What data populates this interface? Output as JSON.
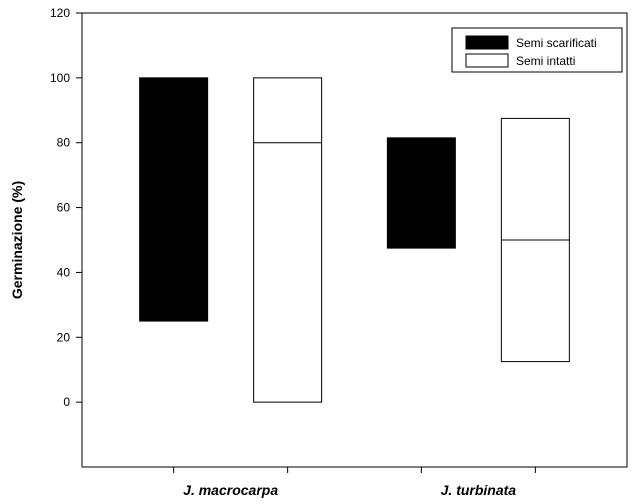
{
  "chart_data": {
    "type": "box",
    "title": "",
    "xlabel": "",
    "ylabel": "Germinazione (%)",
    "ylim": [
      -20,
      120
    ],
    "yticks": [
      0,
      20,
      40,
      60,
      80,
      100,
      120
    ],
    "categories": [
      "J. macrocarpa",
      "J. turbinata"
    ],
    "series": [
      {
        "name": "Semi scarificati",
        "color": "#000000",
        "boxes": [
          {
            "category": "J. macrocarpa",
            "low": 25,
            "median": 25,
            "high": 100
          },
          {
            "category": "J. turbinata",
            "low": 47.5,
            "median": 47.5,
            "high": 81.5
          }
        ]
      },
      {
        "name": "Semi intatti",
        "color": "#ffffff",
        "boxes": [
          {
            "category": "J. macrocarpa",
            "low": 0,
            "median": 80,
            "high": 100
          },
          {
            "category": "J. turbinata",
            "low": 12.5,
            "median": 50,
            "high": 87.5
          }
        ]
      }
    ],
    "legend_position": "top-right",
    "grid": false
  }
}
